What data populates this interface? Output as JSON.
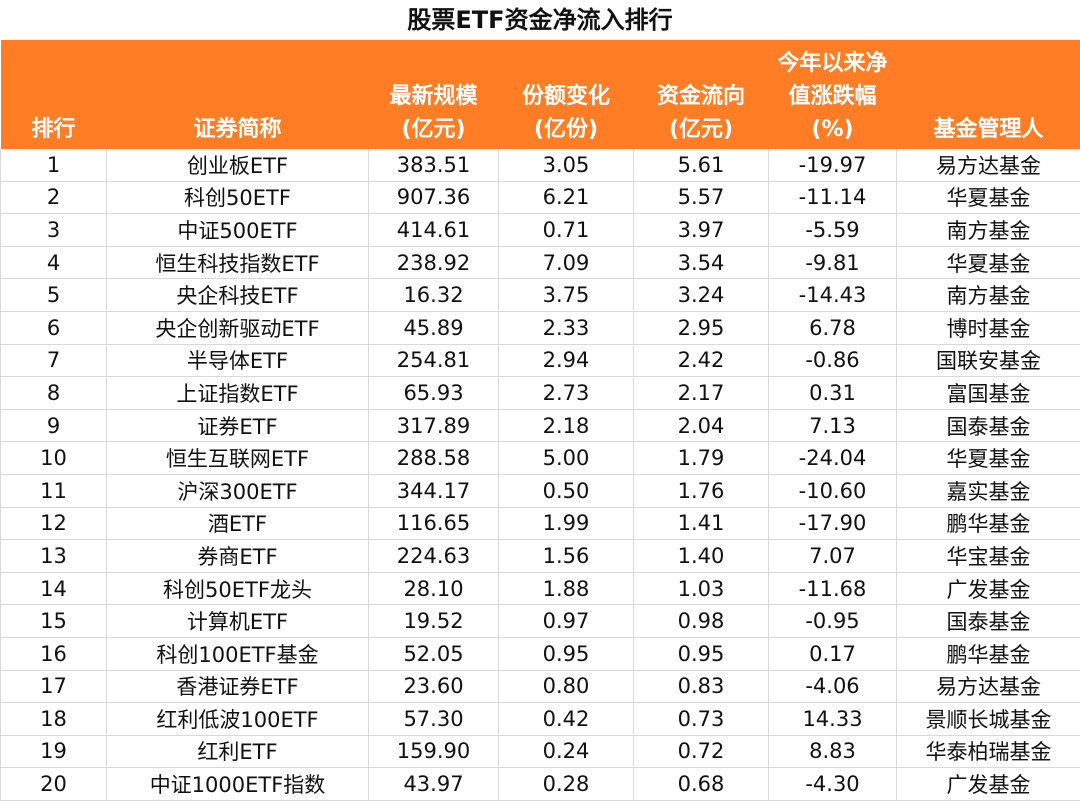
{
  "title": "股票ETF资金净流入排行",
  "headers": [
    [
      "排行"
    ],
    [
      "证券简称"
    ],
    [
      "最新规模",
      "(亿元)"
    ],
    [
      "份额变化",
      "(亿份)"
    ],
    [
      "资金流向",
      "(亿元)"
    ],
    [
      "今年以来净",
      "值涨跌幅",
      "(%)"
    ],
    [
      "基金管理人"
    ]
  ],
  "rows": [
    [
      "1",
      "创业板ETF",
      "383.51",
      "3.05",
      "5.61",
      "-19.97",
      "易方达基金"
    ],
    [
      "2",
      "科创50ETF",
      "907.36",
      "6.21",
      "5.57",
      "-11.14",
      "华夏基金"
    ],
    [
      "3",
      "中证500ETF",
      "414.61",
      "0.71",
      "3.97",
      "-5.59",
      "南方基金"
    ],
    [
      "4",
      "恒生科技指数ETF",
      "238.92",
      "7.09",
      "3.54",
      "-9.81",
      "华夏基金"
    ],
    [
      "5",
      "央企科技ETF",
      "16.32",
      "3.75",
      "3.24",
      "-14.43",
      "南方基金"
    ],
    [
      "6",
      "央企创新驱动ETF",
      "45.89",
      "2.33",
      "2.95",
      "6.78",
      "博时基金"
    ],
    [
      "7",
      "半导体ETF",
      "254.81",
      "2.94",
      "2.42",
      "-0.86",
      "国联安基金"
    ],
    [
      "8",
      "上证指数ETF",
      "65.93",
      "2.73",
      "2.17",
      "0.31",
      "富国基金"
    ],
    [
      "9",
      "证券ETF",
      "317.89",
      "2.18",
      "2.04",
      "7.13",
      "国泰基金"
    ],
    [
      "10",
      "恒生互联网ETF",
      "288.58",
      "5.00",
      "1.79",
      "-24.04",
      "华夏基金"
    ],
    [
      "11",
      "沪深300ETF",
      "344.17",
      "0.50",
      "1.76",
      "-10.60",
      "嘉实基金"
    ],
    [
      "12",
      "酒ETF",
      "116.65",
      "1.99",
      "1.41",
      "-17.90",
      "鹏华基金"
    ],
    [
      "13",
      "券商ETF",
      "224.63",
      "1.56",
      "1.40",
      "7.07",
      "华宝基金"
    ],
    [
      "14",
      "科创50ETF龙头",
      "28.10",
      "1.88",
      "1.03",
      "-11.68",
      "广发基金"
    ],
    [
      "15",
      "计算机ETF",
      "19.52",
      "0.97",
      "0.98",
      "-0.95",
      "国泰基金"
    ],
    [
      "16",
      "科创100ETF基金",
      "52.05",
      "0.95",
      "0.95",
      "0.17",
      "鹏华基金"
    ],
    [
      "17",
      "香港证券ETF",
      "23.60",
      "0.80",
      "0.83",
      "-4.06",
      "易方达基金"
    ],
    [
      "18",
      "红利低波100ETF",
      "57.30",
      "0.42",
      "0.73",
      "14.33",
      "景顺长城基金"
    ],
    [
      "19",
      "红利ETF",
      "159.90",
      "0.24",
      "0.72",
      "8.83",
      "华泰柏瑞基金"
    ],
    [
      "20",
      "中证1000ETF指数",
      "43.97",
      "0.28",
      "0.68",
      "-4.30",
      "广发基金"
    ]
  ],
  "colors": {
    "header_bg": "#ff7d25",
    "header_text": "#ffffff",
    "grid": "#d9d9d9"
  }
}
